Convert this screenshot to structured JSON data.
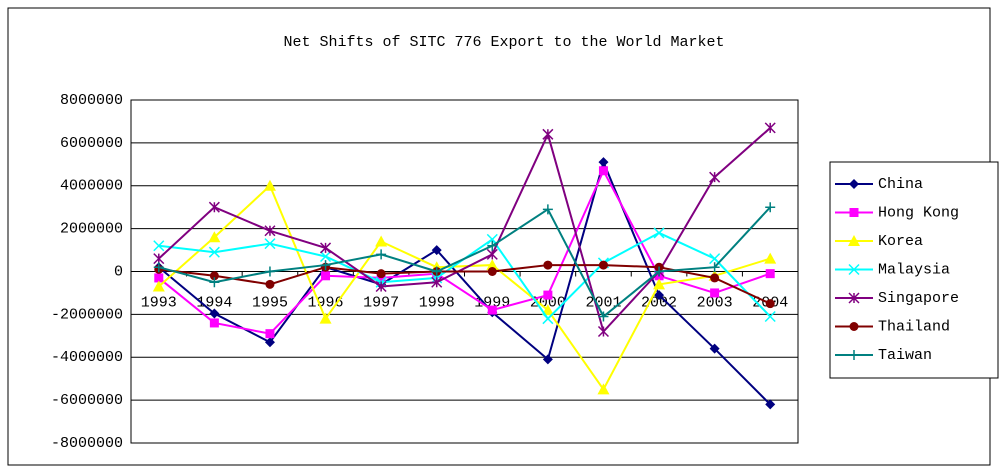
{
  "chart_data": {
    "type": "line",
    "title": "Net Shifts of SITC 776 Export to the World Market",
    "categories": [
      "1993",
      "1994",
      "1995",
      "1996",
      "1997",
      "1998",
      "1999",
      "2000",
      "2001",
      "2002",
      "2003",
      "2004"
    ],
    "ylim": [
      -8000000,
      8000000
    ],
    "yticks": [
      -8000000,
      -6000000,
      -4000000,
      -2000000,
      0,
      2000000,
      4000000,
      6000000,
      8000000
    ],
    "grid": true,
    "series": [
      {
        "name": "China",
        "color": "#000080",
        "values": [
          200000,
          -1960000,
          -3300000,
          200000,
          -600000,
          1000000,
          -1900000,
          -4100000,
          5100000,
          -1100000,
          -3600000,
          -6200000
        ]
      },
      {
        "name": "Hong Kong",
        "color": "#ff00ff",
        "values": [
          -300000,
          -2400000,
          -2900000,
          -200000,
          -300000,
          -100000,
          -1800000,
          -1100000,
          4700000,
          -200000,
          -1000000,
          -100000
        ]
      },
      {
        "name": "Korea",
        "color": "#ffff00",
        "values": [
          -700000,
          1600000,
          4000000,
          -2200000,
          1400000,
          200000,
          300000,
          -1800000,
          -5500000,
          -600000,
          -200000,
          600000
        ]
      },
      {
        "name": "Malaysia",
        "color": "#00ffff",
        "values": [
          1200000,
          900000,
          1300000,
          700000,
          -500000,
          -300000,
          1500000,
          -2200000,
          400000,
          1800000,
          600000,
          -2100000
        ]
      },
      {
        "name": "Singapore",
        "color": "#800080",
        "values": [
          600000,
          3000000,
          1900000,
          1100000,
          -700000,
          -500000,
          800000,
          6400000,
          -2800000,
          0,
          4400000,
          6700000
        ]
      },
      {
        "name": "Thailand",
        "color": "#800000",
        "values": [
          100000,
          -200000,
          -600000,
          200000,
          -100000,
          0,
          0,
          300000,
          300000,
          200000,
          -300000,
          -1500000
        ]
      },
      {
        "name": "Taiwan",
        "color": "#008080",
        "values": [
          200000,
          -500000,
          0,
          300000,
          800000,
          0,
          1200000,
          2900000,
          -2100000,
          0,
          200000,
          3000000
        ]
      }
    ]
  }
}
